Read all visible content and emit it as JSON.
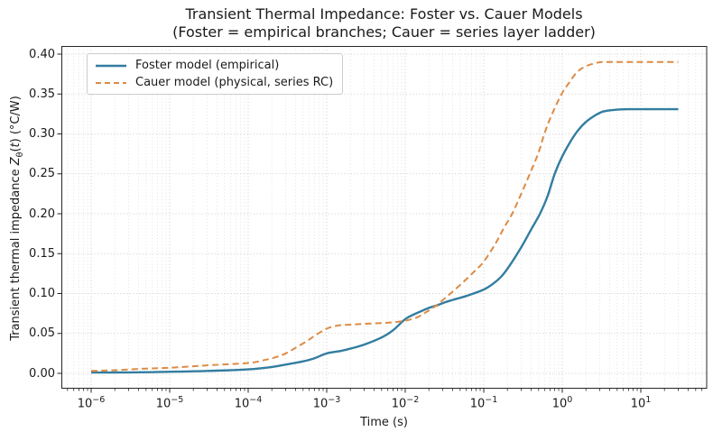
{
  "title": {
    "line1": "Transient Thermal Impedance: Foster vs. Cauer Models",
    "line2": "(Foster = empirical branches; Cauer = series layer ladder)"
  },
  "axes": {
    "ylabel_parts": {
      "prefix": "Transient thermal impedance ",
      "zvar": "Z",
      "zsub": "θ",
      "open": "(",
      "tvar": "t",
      "suffix": ") (°C/W)"
    }
  },
  "colors": {
    "foster_blue": "#327da0",
    "cauer_orange": "#dd8b45",
    "grid_major": "#bdbdbd",
    "grid_minor": "#dcdcdc",
    "spine": "#262626",
    "tick": "#262626",
    "text": "#1a1a1a",
    "legend_border": "#cccccc",
    "background": "#ffffff"
  },
  "chart_data": {
    "type": "line",
    "title": "Transient Thermal Impedance: Foster vs. Cauer Models (Foster = empirical branches; Cauer = series layer ladder)",
    "xlabel": "Time (s)",
    "ylabel": "Transient thermal impedance Z_θ(t) (°C/W)",
    "x_scale": "log",
    "y_scale": "linear",
    "xlim": [
      4.2e-07,
      69
    ],
    "ylim": [
      -0.018,
      0.409
    ],
    "grid": "both axes, dotted, below data",
    "legend_position": "upper left",
    "x_ticks": [
      {
        "e": -6,
        "sup": "−6"
      },
      {
        "e": -5,
        "sup": "−5"
      },
      {
        "e": -4,
        "sup": "−4"
      },
      {
        "e": -3,
        "sup": "−3"
      },
      {
        "e": -2,
        "sup": "−2"
      },
      {
        "e": -1,
        "sup": "−1"
      },
      {
        "e": 0,
        "sup": "0"
      },
      {
        "e": 1,
        "sup": "1"
      }
    ],
    "x_tick_base": "10",
    "y_tick_values": [
      0.0,
      0.05,
      0.1,
      0.15,
      0.2,
      0.25,
      0.3,
      0.35,
      0.4
    ],
    "y_tick_labels": [
      "0.00",
      "0.05",
      "0.10",
      "0.15",
      "0.20",
      "0.25",
      "0.30",
      "0.35",
      "0.40"
    ],
    "series": [
      {
        "name": "Foster model (empirical)",
        "color": "#327da0",
        "style": "solid",
        "linewidth": 2.4,
        "plateau": 0.331,
        "points": [
          [
            1e-06,
            0.001
          ],
          [
            2e-06,
            0.0011
          ],
          [
            5e-06,
            0.0015
          ],
          [
            1e-05,
            0.002
          ],
          [
            3e-05,
            0.003
          ],
          [
            0.0001,
            0.005
          ],
          [
            0.0002,
            0.008
          ],
          [
            0.0003,
            0.011
          ],
          [
            0.0005,
            0.015
          ],
          [
            0.0007,
            0.019
          ],
          [
            0.001,
            0.025
          ],
          [
            0.0015,
            0.028
          ],
          [
            0.002,
            0.031
          ],
          [
            0.003,
            0.036
          ],
          [
            0.005,
            0.045
          ],
          [
            0.007,
            0.054
          ],
          [
            0.01,
            0.068
          ],
          [
            0.013,
            0.074
          ],
          [
            0.016,
            0.078
          ],
          [
            0.02,
            0.082
          ],
          [
            0.025,
            0.085
          ],
          [
            0.032,
            0.089
          ],
          [
            0.04,
            0.092
          ],
          [
            0.06,
            0.097
          ],
          [
            0.1,
            0.105
          ],
          [
            0.13,
            0.112
          ],
          [
            0.17,
            0.122
          ],
          [
            0.22,
            0.137
          ],
          [
            0.3,
            0.158
          ],
          [
            0.4,
            0.18
          ],
          [
            0.52,
            0.2
          ],
          [
            0.65,
            0.222
          ],
          [
            0.8,
            0.25
          ],
          [
            1,
            0.272
          ],
          [
            1.3,
            0.292
          ],
          [
            1.6,
            0.305
          ],
          [
            2,
            0.315
          ],
          [
            2.6,
            0.323
          ],
          [
            3.3,
            0.328
          ],
          [
            4.5,
            0.33
          ],
          [
            7,
            0.331
          ],
          [
            10,
            0.331
          ],
          [
            30,
            0.331
          ]
        ]
      },
      {
        "name": "Cauer model (physical, series RC)",
        "color": "#dd8b45",
        "style": "dashed",
        "linewidth": 2,
        "plateau": 0.39,
        "points": [
          [
            1e-06,
            0.003
          ],
          [
            2e-06,
            0.004
          ],
          [
            5e-06,
            0.006
          ],
          [
            1e-05,
            0.007
          ],
          [
            3e-05,
            0.01
          ],
          [
            0.0001,
            0.013
          ],
          [
            0.00015,
            0.016
          ],
          [
            0.00022,
            0.02
          ],
          [
            0.0003,
            0.025
          ],
          [
            0.0004,
            0.032
          ],
          [
            0.00055,
            0.04
          ],
          [
            0.0007,
            0.047
          ],
          [
            0.001,
            0.056
          ],
          [
            0.0014,
            0.06
          ],
          [
            0.002,
            0.061
          ],
          [
            0.003,
            0.062
          ],
          [
            0.005,
            0.063
          ],
          [
            0.007,
            0.064
          ],
          [
            0.01,
            0.066
          ],
          [
            0.014,
            0.07
          ],
          [
            0.018,
            0.076
          ],
          [
            0.024,
            0.084
          ],
          [
            0.032,
            0.094
          ],
          [
            0.043,
            0.105
          ],
          [
            0.06,
            0.118
          ],
          [
            0.08,
            0.13
          ],
          [
            0.1,
            0.14
          ],
          [
            0.14,
            0.162
          ],
          [
            0.18,
            0.182
          ],
          [
            0.23,
            0.2
          ],
          [
            0.3,
            0.225
          ],
          [
            0.39,
            0.251
          ],
          [
            0.5,
            0.277
          ],
          [
            0.6,
            0.302
          ],
          [
            0.75,
            0.326
          ],
          [
            0.98,
            0.35
          ],
          [
            1.2,
            0.363
          ],
          [
            1.5,
            0.376
          ],
          [
            1.9,
            0.384
          ],
          [
            2.5,
            0.388
          ],
          [
            3.2,
            0.39
          ],
          [
            5,
            0.39
          ],
          [
            10,
            0.39
          ],
          [
            30,
            0.39
          ]
        ]
      }
    ]
  }
}
